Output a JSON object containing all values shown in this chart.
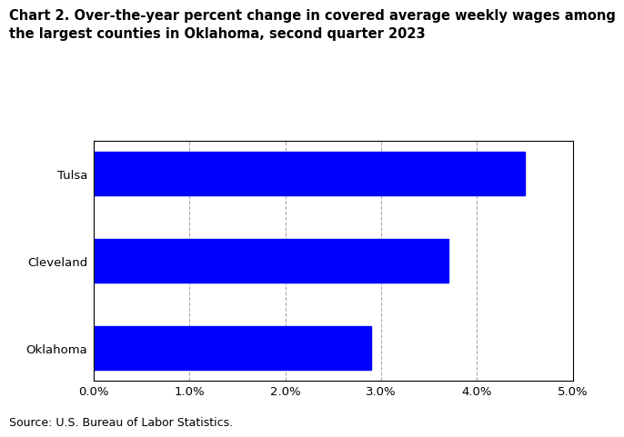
{
  "categories": [
    "Oklahoma",
    "Cleveland",
    "Tulsa"
  ],
  "values": [
    2.9,
    3.7,
    4.5
  ],
  "bar_color": "#0000ff",
  "title_line1": "Chart 2. Over-the-year percent change in covered average weekly wages among",
  "title_line2": "the largest counties in Oklahoma, second quarter 2023",
  "xlim": [
    0,
    0.05
  ],
  "xticks": [
    0.0,
    0.01,
    0.02,
    0.03,
    0.04,
    0.05
  ],
  "xtick_labels": [
    "0.0%",
    "1.0%",
    "2.0%",
    "3.0%",
    "4.0%",
    "5.0%"
  ],
  "source": "Source: U.S. Bureau of Labor Statistics.",
  "bar_height": 0.5,
  "background_color": "#ffffff",
  "grid_color": "#aaaaaa",
  "title_fontsize": 10.5,
  "tick_fontsize": 9.5,
  "source_fontsize": 9
}
